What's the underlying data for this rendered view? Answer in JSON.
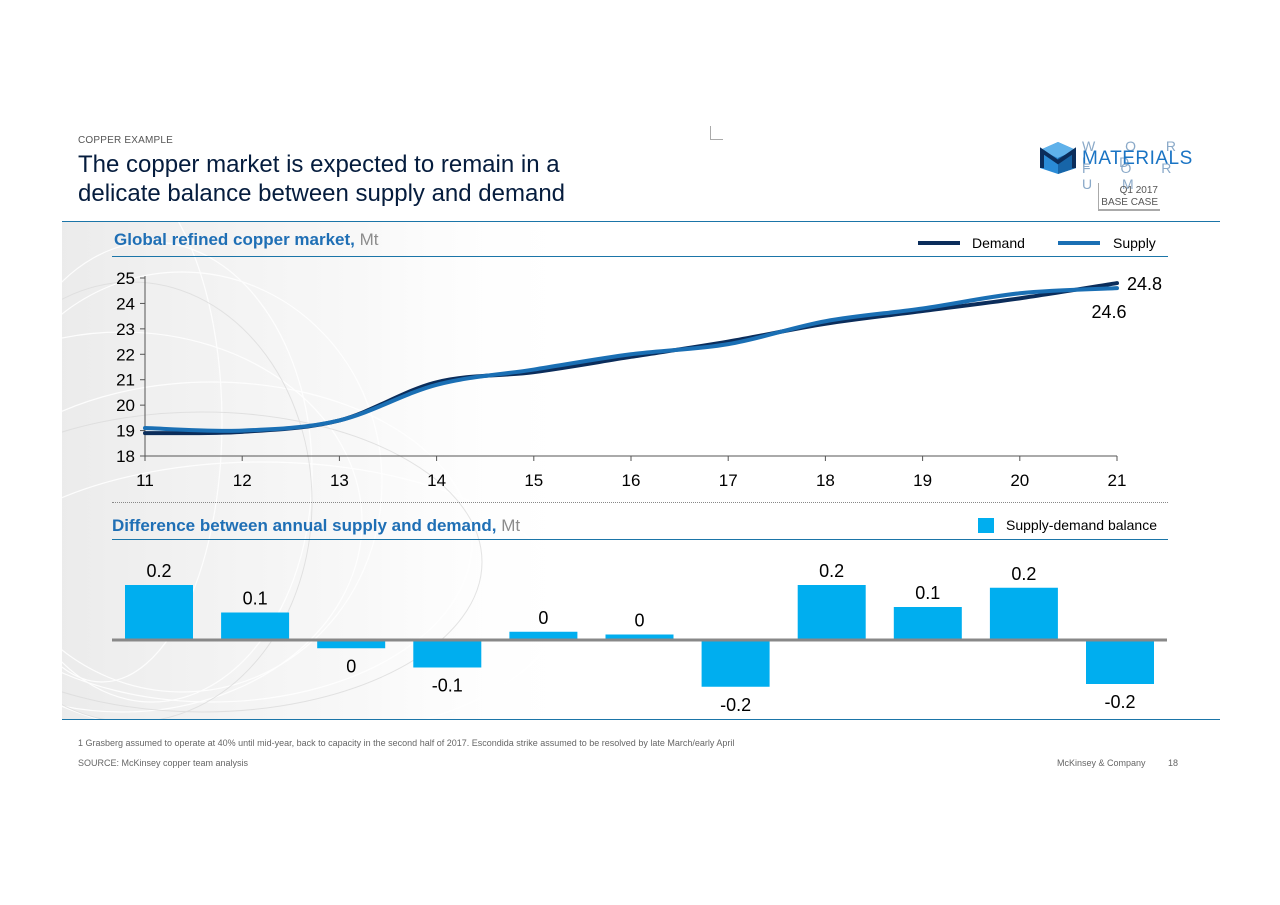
{
  "header": {
    "kicker": "COPPER EXAMPLE",
    "title_line1": "The copper market is expected to remain in a",
    "title_line2": "delicate balance between supply and demand"
  },
  "logo": {
    "top": "W O R L D",
    "middle": "MATERIALS",
    "bottom": "F O R U M",
    "mark_color": "#1a74c4"
  },
  "badge": {
    "line1": "Q1 2017",
    "line2": "BASE CASE"
  },
  "colors": {
    "demand": "#0b2d5b",
    "supply": "#1a6fb4",
    "bar": "#00aeef",
    "section_title": "#1f6fb5",
    "rule": "#1b75a8"
  },
  "chart_data": [
    {
      "type": "line",
      "title": "Global refined copper market,",
      "unit": "Mt",
      "x": [
        11,
        12,
        13,
        14,
        15,
        16,
        17,
        18,
        19,
        20,
        21
      ],
      "xlim": [
        11,
        21
      ],
      "ylim": [
        18,
        25
      ],
      "yticks": [
        18,
        19,
        20,
        21,
        22,
        23,
        24,
        25
      ],
      "legend_position": "top-right",
      "series": [
        {
          "name": "Demand",
          "values": [
            18.9,
            18.95,
            19.4,
            20.9,
            21.3,
            21.9,
            22.5,
            23.2,
            23.7,
            24.2,
            24.8
          ]
        },
        {
          "name": "Supply",
          "values": [
            19.1,
            19.0,
            19.4,
            20.8,
            21.4,
            22.0,
            22.4,
            23.3,
            23.8,
            24.4,
            24.6
          ]
        }
      ],
      "end_labels": [
        {
          "value": "24.8",
          "series": "Demand"
        },
        {
          "value": "24.6",
          "series": "Supply"
        }
      ]
    },
    {
      "type": "bar",
      "title": "Difference between annual supply and demand,",
      "unit": "Mt",
      "legend_position": "top-right",
      "series": [
        {
          "name": "Supply-demand balance",
          "values": [
            0.2,
            0.1,
            -0.03,
            -0.1,
            0.03,
            0.02,
            -0.17,
            0.2,
            0.12,
            0.19,
            -0.16
          ],
          "labels": [
            "0.2",
            "0.1",
            "0",
            "-0.1",
            "0",
            "0",
            "-0.2",
            "0.2",
            "0.1",
            "0.2",
            "-0.2"
          ]
        }
      ]
    }
  ],
  "footer": {
    "footnote": "1 Grasberg assumed to operate at 40% until mid-year, back to capacity in the second half of 2017. Escondida strike assumed to be resolved by late March/early April",
    "source": "SOURCE: McKinsey copper team analysis",
    "brand": "McKinsey & Company",
    "page": "18"
  }
}
